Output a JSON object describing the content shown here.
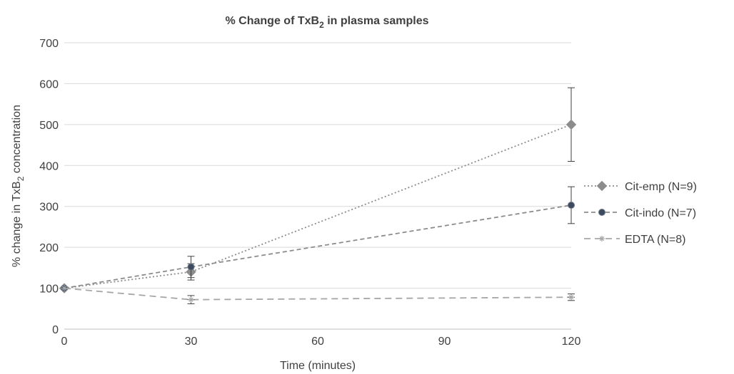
{
  "chart_data": {
    "type": "line",
    "title": "% Change of TxB",
    "title_sub": "2",
    "title_rest": " in plasma samples",
    "xlabel": "Time (minutes)",
    "ylabel": "% change in TxB",
    "ylabel_sub": "2",
    "ylabel_rest": " concentration",
    "xlim": [
      0,
      120
    ],
    "ylim": [
      0,
      700
    ],
    "xticks": [
      0,
      30,
      60,
      90,
      120
    ],
    "yticks": [
      0,
      100,
      200,
      300,
      400,
      500,
      600,
      700
    ],
    "grid": "horizontal",
    "legend_position": "right",
    "series": [
      {
        "name": "Cit-emp (N=9)",
        "marker": "diamond",
        "dash": "dotted",
        "color": "#8c8c8c",
        "x": [
          0,
          30,
          120
        ],
        "y": [
          100,
          140,
          500
        ],
        "err": [
          0,
          20,
          90
        ]
      },
      {
        "name": "Cit-indo (N=7)",
        "marker": "circle",
        "dash": "dashed",
        "color": "#3d4a5e",
        "x": [
          0,
          30,
          120
        ],
        "y": [
          100,
          152,
          303
        ],
        "err": [
          0,
          26,
          45
        ]
      },
      {
        "name": "EDTA (N=8)",
        "marker": "star",
        "dash": "longdash",
        "color": "#a6a6a6",
        "x": [
          0,
          30,
          120
        ],
        "y": [
          100,
          72,
          78
        ],
        "err": [
          0,
          10,
          8
        ]
      }
    ]
  }
}
